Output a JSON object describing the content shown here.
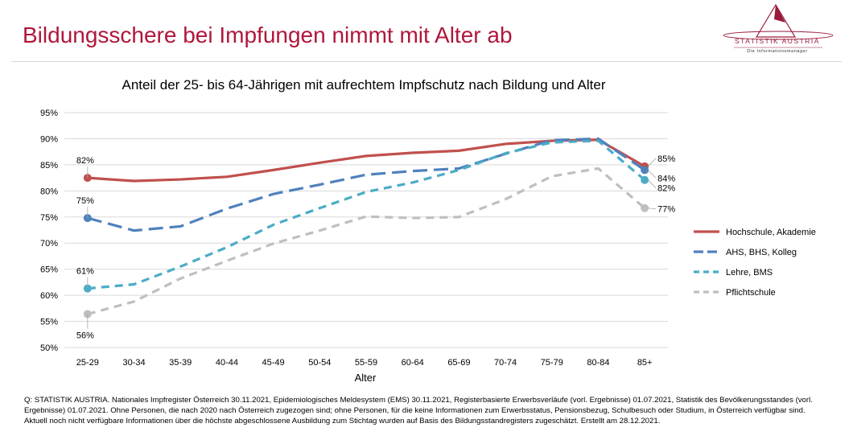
{
  "page": {
    "title": "Bildungsschere bei Impfungen nimmt mit Alter ab",
    "logo_name": "STATISTIK AUSTRIA",
    "logo_tagline": "Die Informationsmanager",
    "source_note": "Q: STATISTIK AUSTRIA. Nationales Impfregister Österreich 30.11.2021, Epidemiologisches Meldesystem (EMS) 30.11.2021, Registerbasierte Erwerbsverläufe (vorl. Ergebnisse) 01.07.2021, Statistik des Bevölkerungsstandes (vorl. Ergebnisse) 01.07.2021. Ohne Personen, die nach 2020 nach Österreich zugezogen sind; ohne Personen, für die keine Informationen zum Erwerbsstatus, Pensionsbezug, Schulbesuch oder Studium, in Österreich verfügbar sind. Aktuell noch nicht verfügbare Informationen über die höchste abgeschlossene Ausbildung zum Stichtag wurden auf Basis des Bildungsstandregisters zugeschätzt. Erstellt am 28.12.2021."
  },
  "chart_data": {
    "type": "line",
    "title": "Anteil der 25- bis 64-Jährigen mit aufrechtem Impfschutz nach Bildung und Alter",
    "xlabel": "Alter",
    "ylabel": "",
    "ylim": [
      50,
      95
    ],
    "yticks": [
      "50%",
      "55%",
      "60%",
      "65%",
      "70%",
      "75%",
      "80%",
      "85%",
      "90%",
      "95%"
    ],
    "grid": true,
    "legend_position": "right",
    "categories": [
      "25-29",
      "30-34",
      "35-39",
      "40-44",
      "45-49",
      "50-54",
      "55-59",
      "60-64",
      "65-69",
      "70-74",
      "75-79",
      "80-84",
      "85+"
    ],
    "series": [
      {
        "name": "Hochschule, Akademie",
        "color": "#c0504d",
        "dash": "solid",
        "values": [
          82.5,
          81.9,
          82.2,
          82.7,
          84.0,
          85.4,
          86.7,
          87.3,
          87.7,
          89.0,
          89.6,
          89.8,
          84.7
        ],
        "labels": [
          {
            "index": 0,
            "text": "82%"
          },
          {
            "index": 12,
            "text": "85%"
          }
        ]
      },
      {
        "name": "AHS, BHS, Kolleg",
        "color": "#4f81bd",
        "dash": "long-dash",
        "values": [
          74.8,
          72.4,
          73.2,
          76.6,
          79.4,
          81.2,
          83.1,
          83.8,
          84.3,
          87.1,
          89.7,
          90.0,
          84.0
        ],
        "labels": [
          {
            "index": 0,
            "text": "75%"
          },
          {
            "index": 12,
            "text": "84%"
          }
        ]
      },
      {
        "name": "Lehre, BMS",
        "color": "#4bacc6",
        "dash": "dash",
        "values": [
          61.3,
          62.1,
          65.5,
          69.2,
          73.5,
          76.7,
          79.8,
          81.6,
          84.0,
          87.2,
          89.3,
          89.6,
          82.1
        ],
        "labels": [
          {
            "index": 0,
            "text": "61%"
          },
          {
            "index": 12,
            "text": "82%"
          }
        ]
      },
      {
        "name": "Pflichtschule",
        "color": "#bfbfbf",
        "dash": "dash",
        "values": [
          56.4,
          58.8,
          63.2,
          66.6,
          69.9,
          72.4,
          75.1,
          74.8,
          75.0,
          78.4,
          82.8,
          84.3,
          76.7
        ],
        "labels": [
          {
            "index": 0,
            "text": "56%"
          },
          {
            "index": 12,
            "text": "77%"
          }
        ]
      }
    ]
  }
}
